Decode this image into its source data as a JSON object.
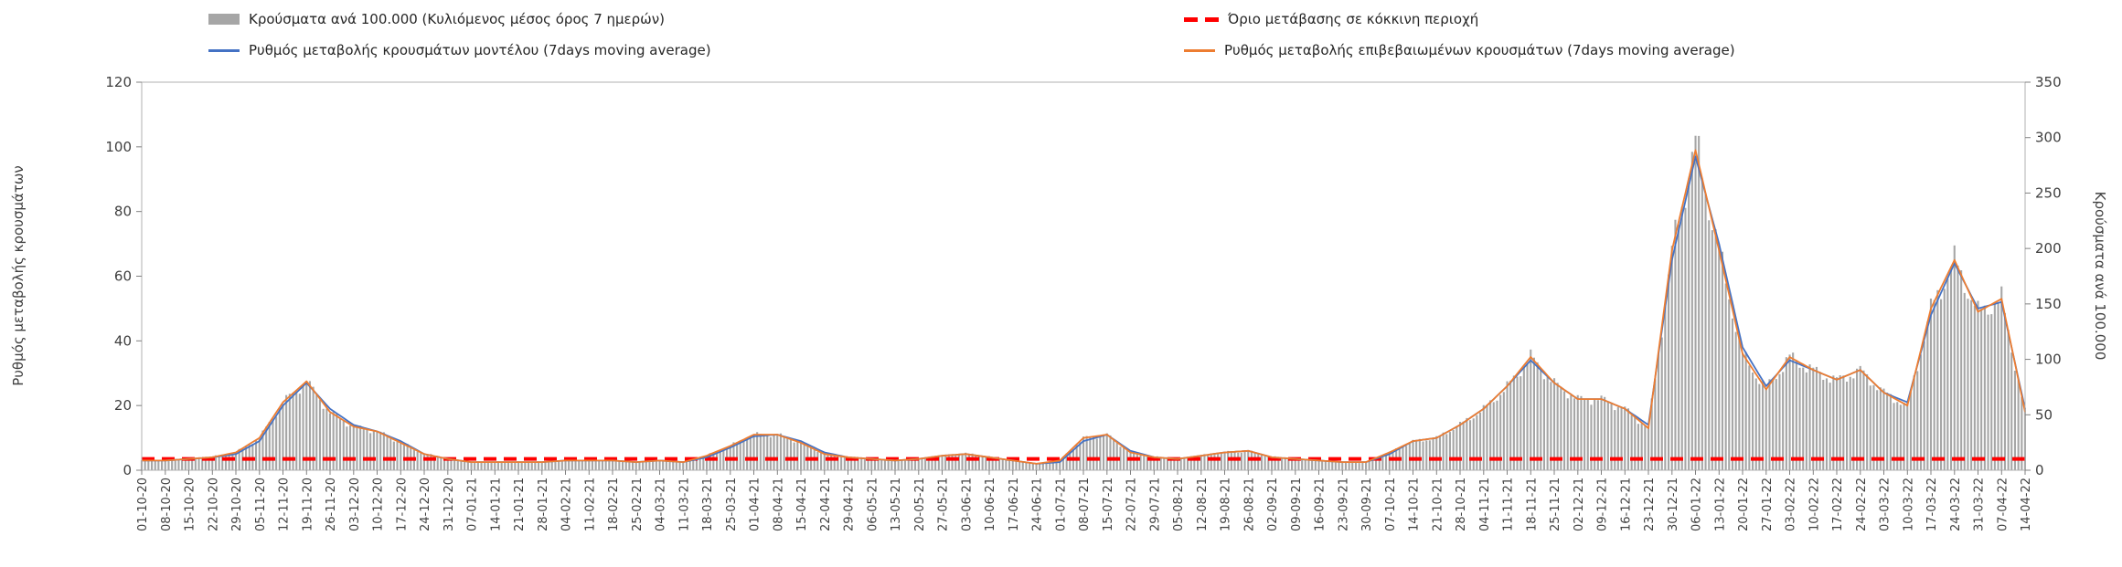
{
  "chart_data": {
    "type": "combo-bar-line",
    "x_labels": [
      "01-10-20",
      "08-10-20",
      "15-10-20",
      "22-10-20",
      "29-10-20",
      "05-11-20",
      "12-11-20",
      "19-11-20",
      "26-11-20",
      "03-12-20",
      "10-12-20",
      "17-12-20",
      "24-12-20",
      "31-12-20",
      "07-01-21",
      "14-01-21",
      "21-01-21",
      "28-01-21",
      "04-02-21",
      "11-02-21",
      "18-02-21",
      "25-02-21",
      "04-03-21",
      "11-03-21",
      "18-03-21",
      "25-03-21",
      "01-04-21",
      "08-04-21",
      "15-04-21",
      "22-04-21",
      "29-04-21",
      "06-05-21",
      "13-05-21",
      "20-05-21",
      "27-05-21",
      "03-06-21",
      "10-06-21",
      "17-06-21",
      "24-06-21",
      "01-07-21",
      "08-07-21",
      "15-07-21",
      "22-07-21",
      "29-07-21",
      "05-08-21",
      "12-08-21",
      "19-08-21",
      "26-08-21",
      "02-09-21",
      "09-09-21",
      "16-09-21",
      "23-09-21",
      "30-09-21",
      "07-10-21",
      "14-10-21",
      "21-10-21",
      "28-10-21",
      "04-11-21",
      "11-11-21",
      "18-11-21",
      "25-11-21",
      "02-12-21",
      "09-12-21",
      "16-12-21",
      "23-12-21",
      "30-12-21",
      "06-01-22",
      "13-01-22",
      "20-01-22",
      "27-01-22",
      "03-02-22",
      "10-02-22",
      "17-02-22",
      "24-02-22",
      "03-03-22",
      "10-03-22",
      "17-03-22",
      "24-03-22",
      "31-03-22",
      "07-04-22",
      "14-04-22"
    ],
    "y_left": {
      "title": "Ρυθμός μεταβολής κρουσμάτων",
      "range": [
        0,
        120
      ],
      "ticks": [
        0,
        20,
        40,
        60,
        80,
        100,
        120
      ]
    },
    "y_right": {
      "title": "Κρούσματα ανά 100.000",
      "range": [
        0,
        350
      ],
      "ticks": [
        0,
        50,
        100,
        150,
        200,
        250,
        300,
        350
      ]
    },
    "threshold": {
      "label": "Όριο μετάβασης σε κόκκινη περιοχή",
      "value": 3.5,
      "color": "#ff0000",
      "style": "dashed"
    },
    "series": [
      {
        "name": "Κρούσματα ανά 100.000 (Κυλιόμενος μέσος όρος 7 ημερών)",
        "type": "bar",
        "axis": "right",
        "color": "#a6a6a6",
        "values": [
          9,
          9,
          10,
          12,
          16,
          29,
          61,
          80,
          52,
          39,
          35,
          25,
          15,
          10,
          7,
          7,
          7,
          7,
          9,
          9,
          9,
          7,
          9,
          7,
          13,
          22,
          32,
          32,
          25,
          15,
          12,
          10,
          9,
          10,
          13,
          15,
          12,
          9,
          6,
          9,
          29,
          32,
          16,
          12,
          10,
          13,
          16,
          17,
          12,
          10,
          9,
          7,
          7,
          16,
          26,
          29,
          41,
          55,
          75,
          102,
          78,
          64,
          64,
          55,
          38,
          197,
          295,
          197,
          104,
          73,
          102,
          90,
          81,
          90,
          70,
          58,
          145,
          189,
          142,
          154,
          52
        ]
      },
      {
        "name": "Ρυθμός μεταβολής κρουσμάτων μοντέλου (7days moving average)",
        "type": "line",
        "axis": "left",
        "color": "#4472c4",
        "values": [
          3,
          3,
          3.5,
          4,
          5,
          9,
          20,
          27,
          19,
          14,
          12,
          9,
          5,
          3.5,
          2.5,
          2.5,
          2.5,
          2.5,
          3,
          3,
          3,
          2.5,
          3,
          2.5,
          4,
          7,
          10.5,
          11,
          9,
          5.5,
          4,
          3.5,
          3,
          3.5,
          4.5,
          5,
          4,
          3,
          2,
          2.5,
          9,
          11,
          6,
          4,
          3.5,
          4.5,
          5.5,
          6,
          4,
          3.5,
          3,
          2.5,
          2.5,
          5,
          9,
          10,
          14,
          19,
          26,
          34,
          27,
          22,
          22,
          19,
          14,
          65,
          97,
          70,
          38,
          26,
          34,
          31,
          28,
          31,
          24,
          21,
          48,
          64,
          50,
          52,
          19
        ]
      },
      {
        "name": "Ρυθμός μεταβολής επιβεβαιωμένων κρουσμάτων (7days moving average)",
        "type": "line",
        "axis": "left",
        "color": "#ed7d31",
        "values": [
          3,
          3,
          3.5,
          4,
          5.5,
          10,
          21,
          27.5,
          18,
          13.5,
          12,
          8.5,
          5,
          3.5,
          2.5,
          2.5,
          2.5,
          2.5,
          3,
          3,
          3,
          2.5,
          3,
          2.5,
          4.5,
          7.5,
          11,
          11,
          8.5,
          5,
          4,
          3.5,
          3,
          3.5,
          4.5,
          5,
          4,
          3,
          2,
          3,
          10,
          11,
          5.5,
          4,
          3.5,
          4.5,
          5.5,
          6,
          4,
          3.5,
          3,
          2.5,
          2.5,
          5.5,
          9,
          10,
          14,
          19,
          26,
          35,
          27,
          22,
          22,
          19,
          13,
          68,
          99,
          68,
          36,
          25,
          35,
          31,
          28,
          31,
          24,
          20,
          50,
          65,
          49,
          53,
          18
        ]
      }
    ],
    "legend_position": "top",
    "grid": false
  },
  "colors": {
    "bars": "#a6a6a6",
    "model_line": "#4472c4",
    "confirmed_line": "#ed7d31",
    "threshold": "#ff0000",
    "axis_text": "#3f3f3f"
  }
}
